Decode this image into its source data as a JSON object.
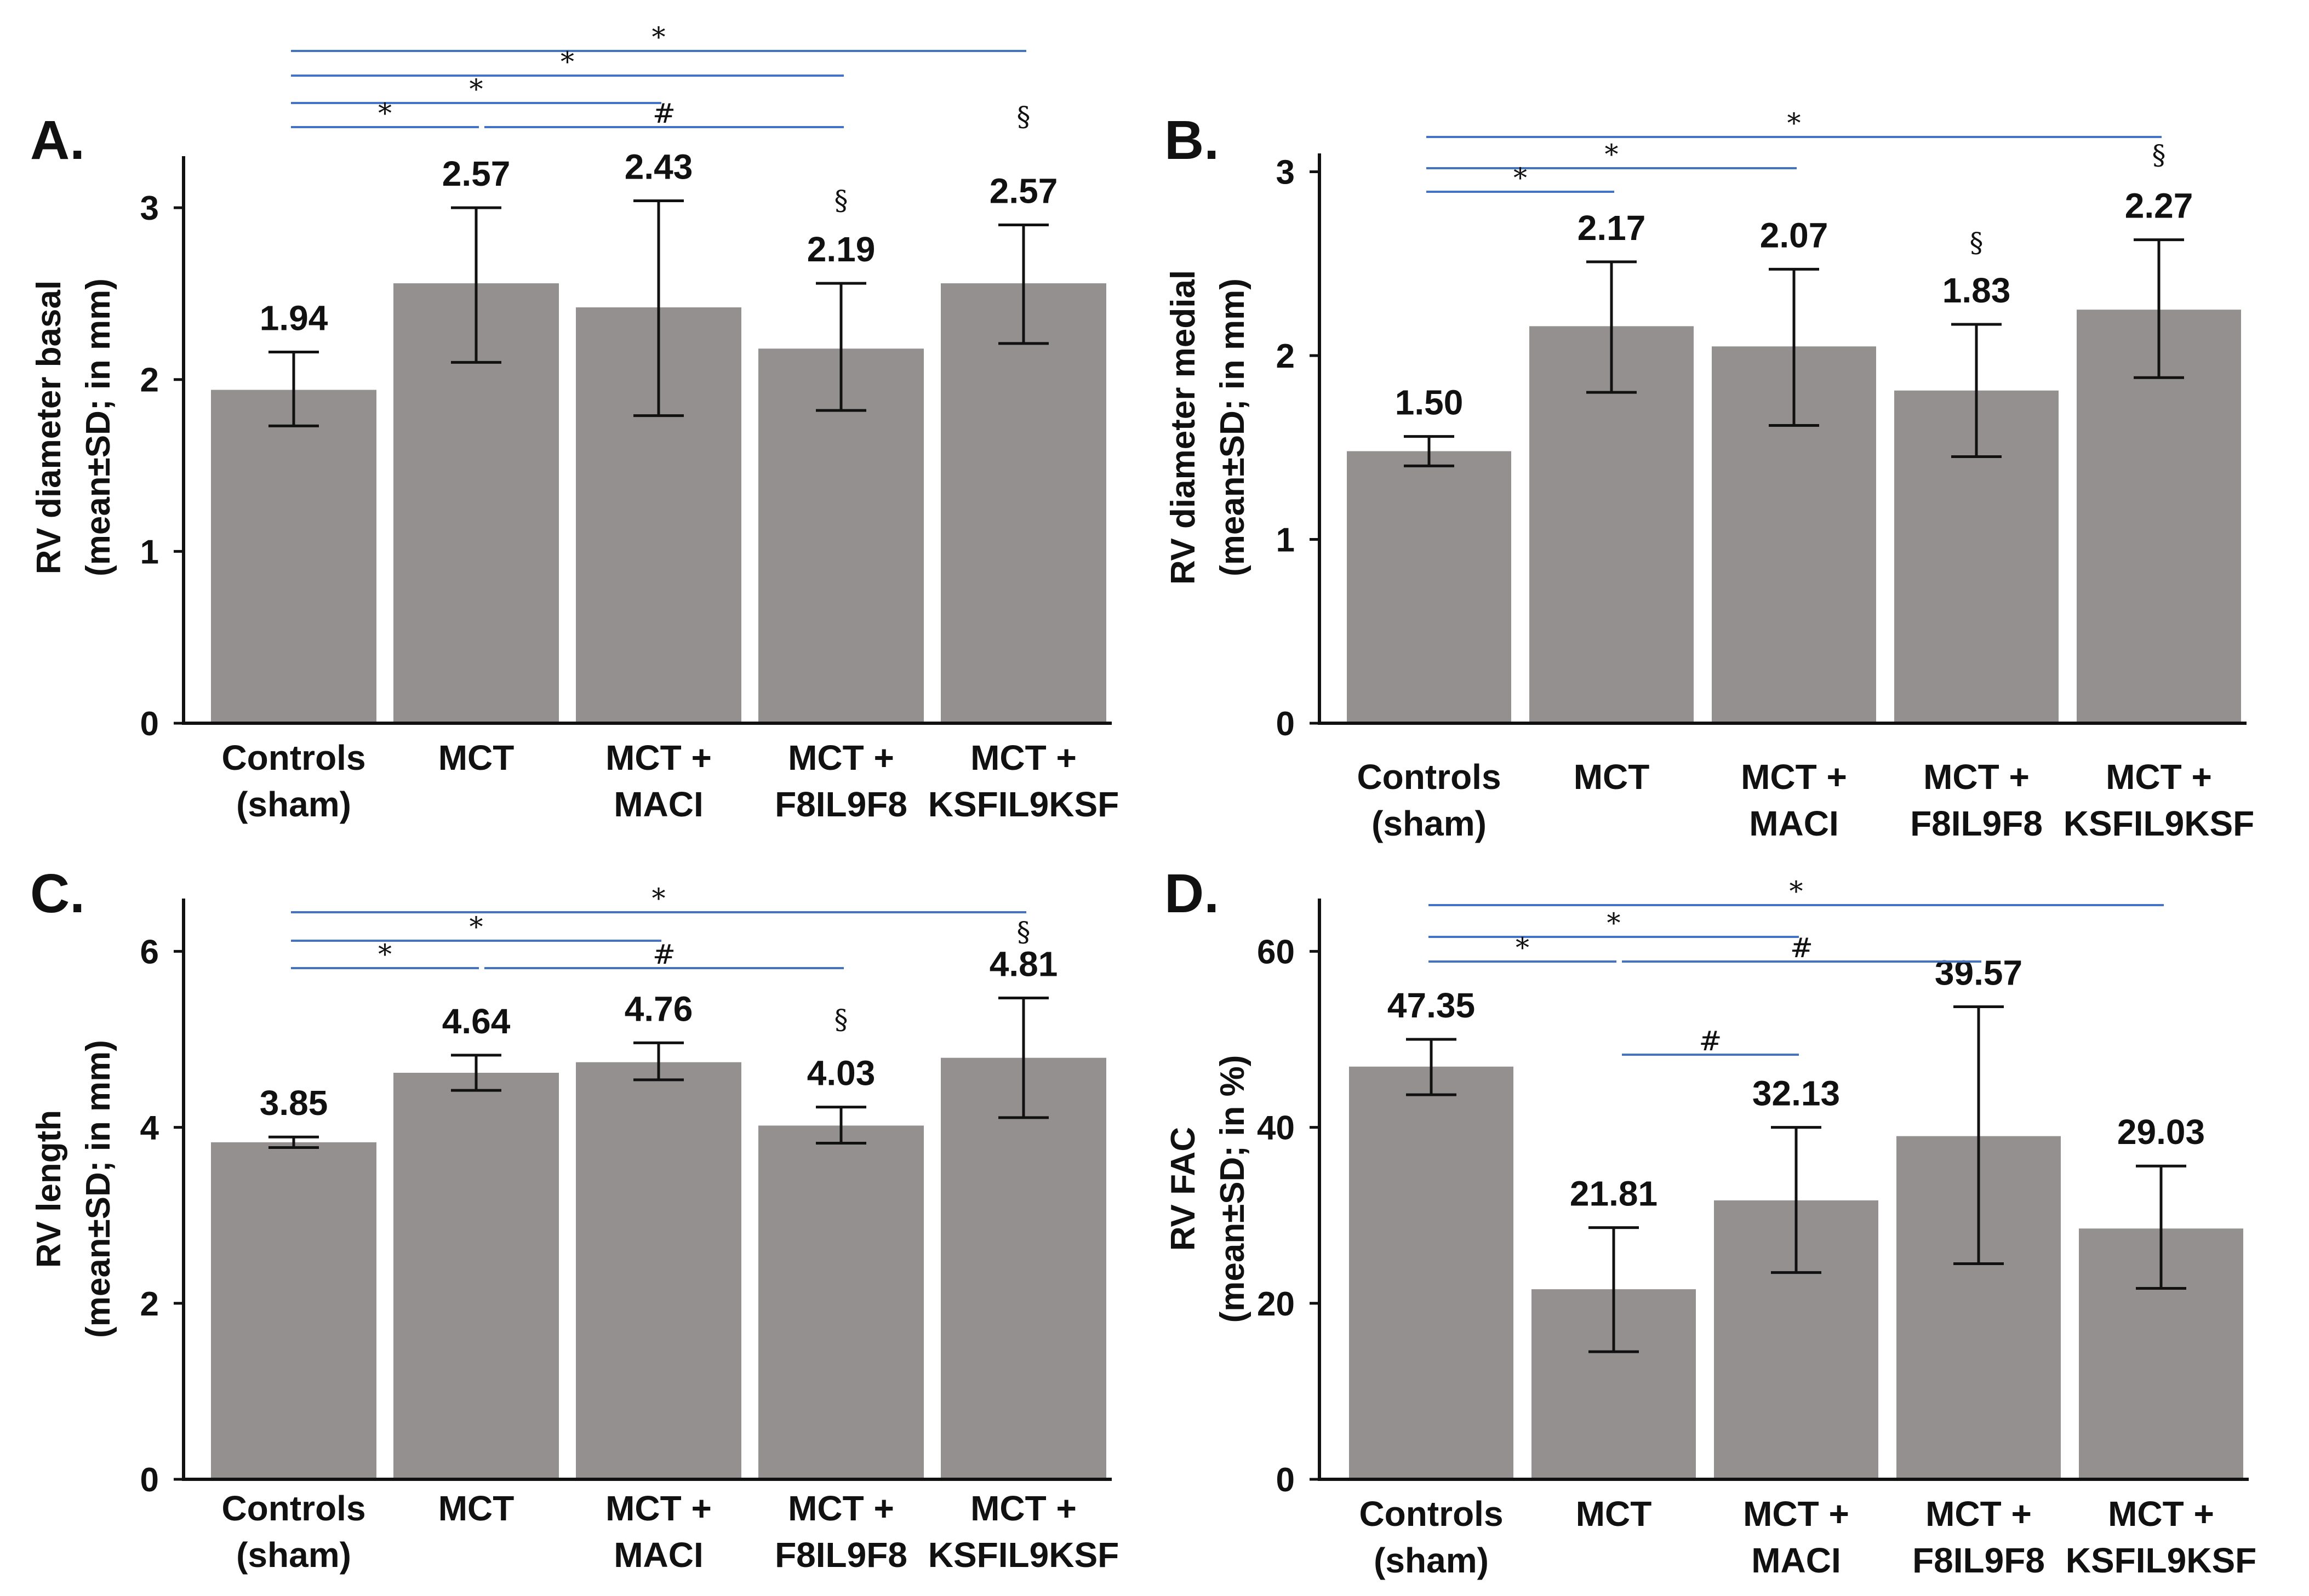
{
  "chart_data": [
    {
      "panel": "A.",
      "type": "bar",
      "categories": [
        [
          "Controls",
          "(sham)"
        ],
        [
          "MCT"
        ],
        [
          "MCT +",
          "MACI"
        ],
        [
          "MCT +",
          "F8IL9F8"
        ],
        [
          "MCT +",
          "KSFIL9KSF"
        ]
      ],
      "values": [
        1.94,
        2.57,
        2.43,
        2.19,
        2.57
      ],
      "bar_heights": [
        1.94,
        2.56,
        2.42,
        2.18,
        2.56
      ],
      "value_labels": [
        "1.94",
        "2.57",
        "2.43",
        "2.19",
        "2.57"
      ],
      "error_low": [
        1.73,
        2.1,
        1.79,
        1.82,
        2.21
      ],
      "error_high": [
        2.16,
        3.0,
        3.04,
        2.56,
        2.9
      ],
      "ylabel": [
        "RV diameter basal",
        "(mean±SD; in mm)"
      ],
      "ylim": [
        0,
        3.3
      ],
      "yticks": [
        0,
        1,
        2,
        3
      ],
      "significance": [
        {
          "from": 0,
          "to": 4,
          "label": "*"
        },
        {
          "from": 0,
          "to": 3,
          "label": "*"
        },
        {
          "from": 0,
          "to": 2,
          "label": "*"
        },
        {
          "from": 0,
          "to": 1,
          "label": "*"
        },
        {
          "from": 1,
          "to": 3,
          "label": "#"
        }
      ],
      "bar_marks": [
        {
          "index": 3,
          "label": "§"
        },
        {
          "index": 4,
          "label": "§"
        }
      ]
    },
    {
      "panel": "B.",
      "type": "bar",
      "categories": [
        [
          "Controls",
          "(sham)"
        ],
        [
          "MCT"
        ],
        [
          "MCT +",
          "MACI"
        ],
        [
          "MCT +",
          "F8IL9F8"
        ],
        [
          "MCT +",
          "KSFIL9KSF"
        ]
      ],
      "values": [
        1.5,
        2.17,
        2.07,
        1.83,
        2.27
      ],
      "bar_heights": [
        1.48,
        2.16,
        2.05,
        1.81,
        2.25
      ],
      "value_labels": [
        "1.50",
        "2.17",
        "2.07",
        "1.83",
        "2.27"
      ],
      "error_low": [
        1.4,
        1.8,
        1.62,
        1.45,
        1.88
      ],
      "error_high": [
        1.56,
        2.51,
        2.47,
        2.17,
        2.63
      ],
      "ylabel": [
        "RV diameter medial",
        "(mean±SD; in mm)"
      ],
      "ylim": [
        0,
        3.1
      ],
      "yticks": [
        0,
        1,
        2,
        3
      ],
      "significance": [
        {
          "from": 0,
          "to": 4,
          "label": "*"
        },
        {
          "from": 0,
          "to": 2,
          "label": "*"
        },
        {
          "from": 0,
          "to": 1,
          "label": "*"
        }
      ],
      "bar_marks": [
        {
          "index": 3,
          "label": "§"
        },
        {
          "index": 4,
          "label": "§"
        }
      ]
    },
    {
      "panel": "C.",
      "type": "bar",
      "categories": [
        [
          "Controls",
          "(sham)"
        ],
        [
          "MCT"
        ],
        [
          "MCT +",
          "MACI"
        ],
        [
          "MCT +",
          "F8IL9F8"
        ],
        [
          "MCT +",
          "KSFIL9KSF"
        ]
      ],
      "values": [
        3.85,
        4.64,
        4.76,
        4.03,
        4.81
      ],
      "bar_heights": [
        3.83,
        4.62,
        4.74,
        4.02,
        4.79
      ],
      "value_labels": [
        "3.85",
        "4.64",
        "4.76",
        "4.03",
        "4.81"
      ],
      "error_low": [
        3.77,
        4.42,
        4.54,
        3.82,
        4.11
      ],
      "error_high": [
        3.89,
        4.82,
        4.96,
        4.23,
        5.47
      ],
      "ylabel": [
        "RV length",
        "(mean±SD; in mm)"
      ],
      "ylim": [
        0,
        6.6
      ],
      "yticks": [
        0,
        2,
        4,
        6
      ],
      "significance": [
        {
          "from": 0,
          "to": 4,
          "label": "*"
        },
        {
          "from": 0,
          "to": 2,
          "label": "*"
        },
        {
          "from": 0,
          "to": 1,
          "label": "*"
        },
        {
          "from": 1,
          "to": 3,
          "label": "#"
        }
      ],
      "bar_marks": [
        {
          "index": 3,
          "label": "§"
        },
        {
          "index": 4,
          "label": "§"
        }
      ]
    },
    {
      "panel": "D.",
      "type": "bar",
      "categories": [
        [
          "Controls",
          "(sham)"
        ],
        [
          "MCT"
        ],
        [
          "MCT +",
          "MACI"
        ],
        [
          "MCT +",
          "F8IL9F8"
        ],
        [
          "MCT +",
          "KSFIL9KSF"
        ]
      ],
      "values": [
        47.35,
        21.81,
        32.13,
        39.57,
        29.03
      ],
      "bar_heights": [
        46.9,
        21.6,
        31.7,
        39.0,
        28.5
      ],
      "value_labels": [
        "47.35",
        "21.81",
        "32.13",
        "39.57",
        "29.03"
      ],
      "error_low": [
        43.7,
        14.5,
        23.5,
        24.5,
        21.7
      ],
      "error_high": [
        50.0,
        28.6,
        40.0,
        53.7,
        35.6
      ],
      "ylabel": [
        "RV FAC",
        "(mean±SD; in %)"
      ],
      "ylim": [
        0,
        66
      ],
      "yticks": [
        0,
        20,
        40,
        60
      ],
      "significance": [
        {
          "from": 0,
          "to": 4,
          "label": "*"
        },
        {
          "from": 0,
          "to": 2,
          "label": "*"
        },
        {
          "from": 0,
          "to": 1,
          "label": "*"
        },
        {
          "from": 1,
          "to": 3,
          "label": "#"
        },
        {
          "from": 1,
          "to": 2,
          "label": "#"
        }
      ],
      "bar_marks": []
    }
  ]
}
